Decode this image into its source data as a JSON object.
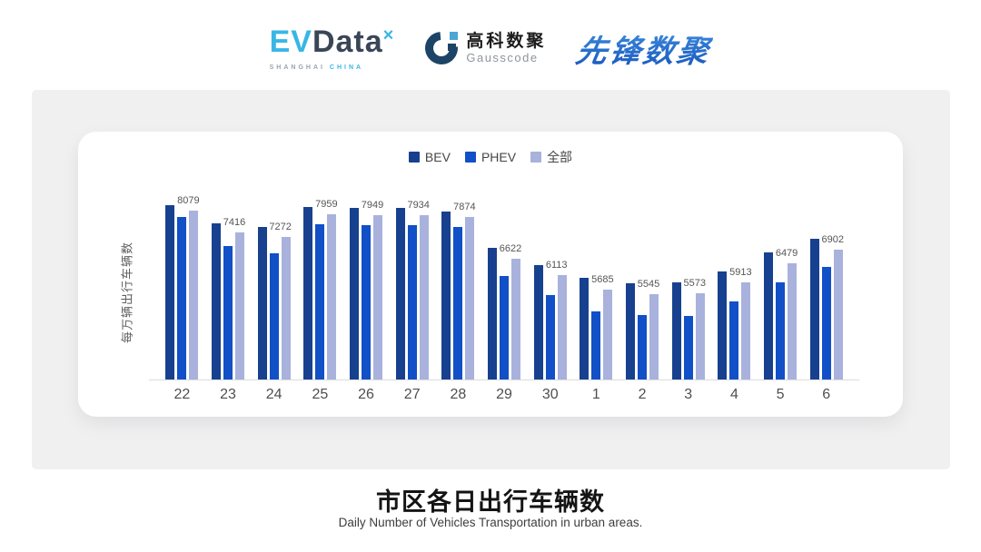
{
  "header": {
    "evdata": {
      "ev": "EV",
      "data": "Data",
      "x_mark": "×",
      "sub_left": "SHANGHAI",
      "sub_right": "CHINA"
    },
    "gausscode": {
      "cn": "高科数聚",
      "en": "Gausscode"
    },
    "xianfeng": {
      "text": "先锋数聚"
    }
  },
  "footer": {
    "title": "市区各日出行车辆数",
    "subtitle": "Daily Number of Vehicles Transportation in urban areas."
  },
  "chart_data": {
    "type": "bar",
    "title": "市区各日出行车辆数",
    "subtitle": "Daily Number of Vehicles Transportation in urban areas.",
    "ylabel": "每万辆出行车辆数",
    "xlabel": "",
    "legend_position": "top",
    "grid": false,
    "value_axis_visible": false,
    "ylim": [
      2960,
      8460
    ],
    "categories": [
      "22",
      "23",
      "24",
      "25",
      "26",
      "27",
      "28",
      "29",
      "30",
      "1",
      "2",
      "3",
      "4",
      "5",
      "6"
    ],
    "series": [
      {
        "name": "BEV",
        "color": "#17418f",
        "estimated": true,
        "values": [
          8240,
          7690,
          7580,
          8190,
          8160,
          8160,
          8050,
          6950,
          6430,
          6040,
          5880,
          5900,
          6240,
          6810,
          7230
        ]
      },
      {
        "name": "PHEV",
        "color": "#1150c6",
        "estimated": true,
        "values": [
          7890,
          7000,
          6780,
          7660,
          7640,
          7640,
          7580,
          6100,
          5520,
          5030,
          4920,
          4890,
          5330,
          5900,
          6370
        ]
      },
      {
        "name": "全部",
        "color": "#a9b2dc",
        "estimated": false,
        "values": [
          8079,
          7416,
          7272,
          7959,
          7949,
          7934,
          7874,
          6622,
          6113,
          5685,
          5545,
          5573,
          5913,
          6479,
          6902
        ]
      }
    ],
    "data_labels": [
      8079,
      7416,
      7272,
      7959,
      7949,
      7934,
      7874,
      6622,
      6113,
      5685,
      5545,
      5573,
      5913,
      6479,
      6902
    ],
    "data_label_series": "全部"
  }
}
